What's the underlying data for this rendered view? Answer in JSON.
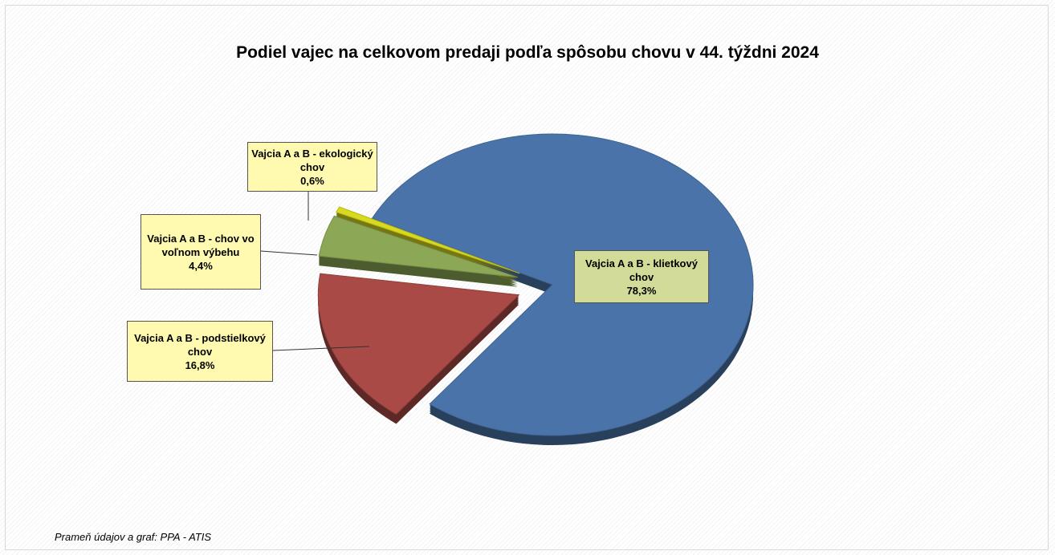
{
  "chart_data": {
    "type": "pie",
    "title": "Podiel vajec na celkovom predaji podľa spôsobu chovu v 44. týždni 2024",
    "categories": [
      "Vajcia A a B - klietkový chov",
      "Vajcia A a B - podstielkový chov",
      "Vajcia A a B - chov vo voľnom výbehu",
      "Vajcia A a B - ekologický chov"
    ],
    "values": [
      78.3,
      16.8,
      4.4,
      0.6
    ],
    "value_labels": [
      "78,3%",
      "16,8%",
      "4,4%",
      "0,6%"
    ],
    "colors": [
      "#4a74a9",
      "#a94a47",
      "#8ca756",
      "#d9d91e"
    ],
    "source": "Prameň údajov a graf: PPA - ATIS"
  }
}
